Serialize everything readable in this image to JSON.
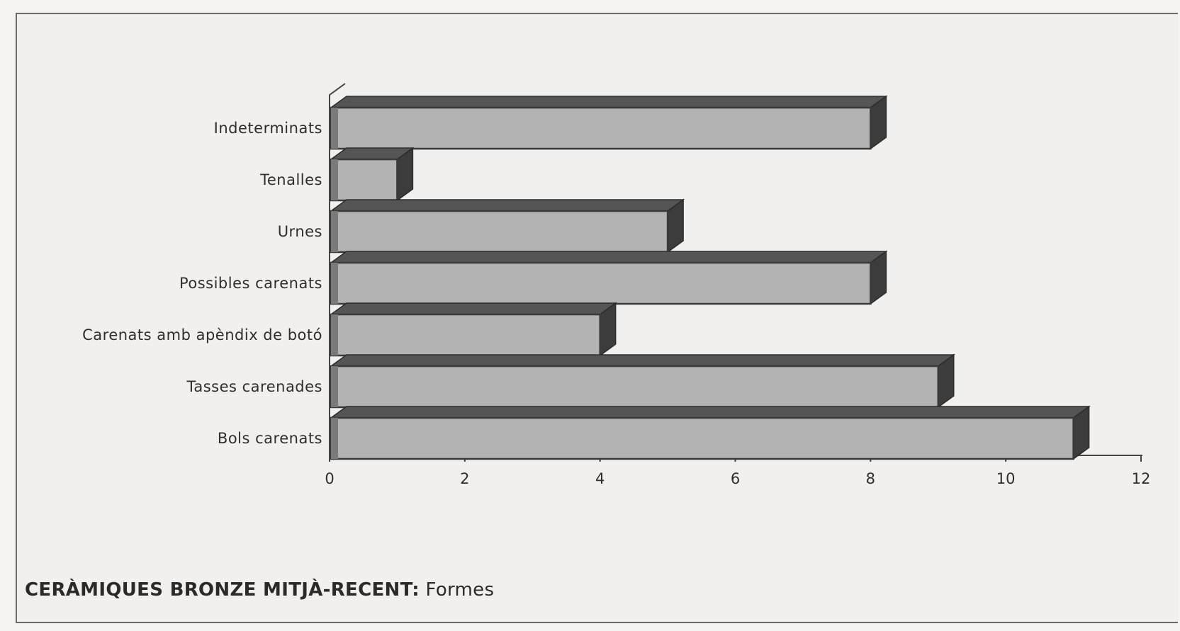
{
  "chart_data": {
    "type": "bar",
    "orientation": "horizontal",
    "style": "3d",
    "title": "",
    "caption": {
      "bold_part": "CERÀMIQUES  BRONZE MITJÀ-RECENT:",
      "rest": " Formes"
    },
    "categories": [
      "Indeterminats",
      "Tenalles",
      "Urnes",
      "Possibles carenats",
      "Carenats amb apèndix de botó",
      "Tasses carenades",
      "Bols carenats"
    ],
    "values": [
      8,
      1,
      5,
      8,
      4,
      9,
      11
    ],
    "xlim": [
      0,
      12
    ],
    "xticks": [
      0,
      2,
      4,
      6,
      8,
      10,
      12
    ],
    "xlabel": "",
    "ylabel": "",
    "grid": false,
    "legend": "none",
    "colors": {
      "bar_front": "#b3b3b3",
      "bar_top": "#555555",
      "bar_side": "#3c3c3c",
      "bar_left": "#7a7a7a",
      "axis": "#444444"
    }
  }
}
